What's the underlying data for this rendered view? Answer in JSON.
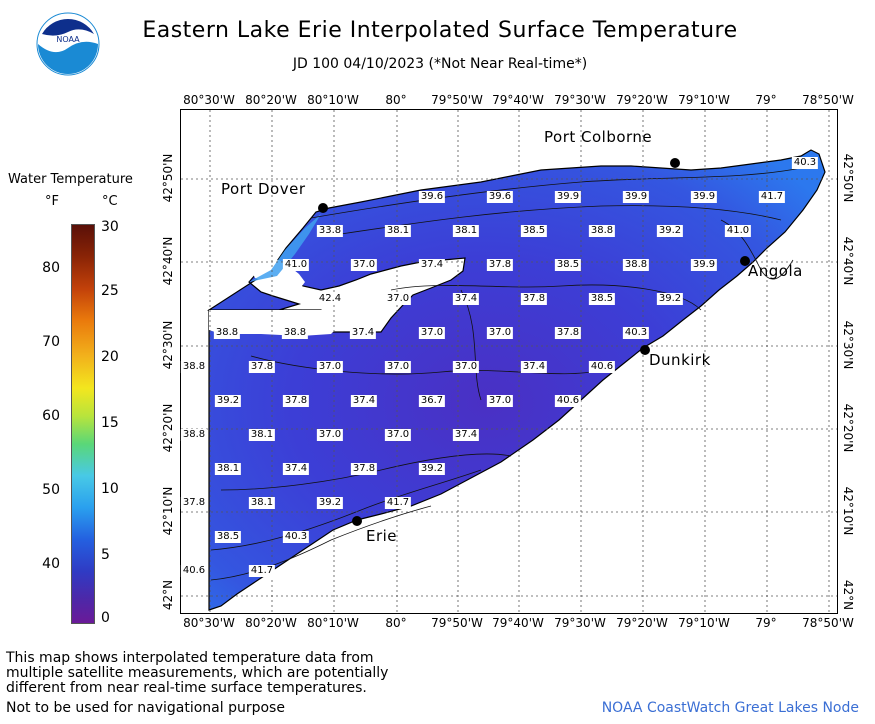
{
  "header": {
    "title": "Eastern Lake Erie Interpolated Surface Temperature",
    "subtitle": "JD 100 04/10/2023 (*Not Near Real-time*)",
    "logo_text": "NOAA"
  },
  "legend": {
    "title": "Water Temperature",
    "unit_f": "°F",
    "unit_c": "°C",
    "ticks_f": [
      "80",
      "70",
      "60",
      "50",
      "40"
    ],
    "ticks_c": [
      "30",
      "25",
      "20",
      "15",
      "10",
      "5",
      "0"
    ]
  },
  "axes": {
    "lon_labels": [
      "80°30'W",
      "80°20'W",
      "80°10'W",
      "80°",
      "79°50'W",
      "79°40'W",
      "79°30'W",
      "79°20'W",
      "79°10'W",
      "79°",
      "78°50'W"
    ],
    "lat_labels": [
      "42°50'N",
      "42°40'N",
      "42°30'N",
      "42°20'N",
      "42°10'N",
      "42°N"
    ]
  },
  "cities": {
    "port_colborne": "Port Colborne",
    "port_dover": "Port Dover",
    "angola": "Angola",
    "dunkirk": "Dunkirk",
    "erie": "Erie"
  },
  "temperatures": {
    "t01": "40.3",
    "t02": "39.6",
    "t03": "39.6",
    "t04": "39.9",
    "t05": "39.9",
    "t06": "39.9",
    "t07": "41.7",
    "t08": "33.8",
    "t09": "38.1",
    "t10": "38.1",
    "t11": "38.5",
    "t12": "38.8",
    "t13": "39.2",
    "t14": "41.0",
    "t15": "41.0",
    "t16": "37.0",
    "t17": "37.4",
    "t18": "37.8",
    "t19": "38.5",
    "t20": "38.8",
    "t21": "39.9",
    "t22": "42.4",
    "t23": "37.0",
    "t24": "37.4",
    "t25": "37.8",
    "t26": "38.5",
    "t27": "39.2",
    "t28": "38.8",
    "t29": "38.8",
    "t30": "37.4",
    "t31": "37.0",
    "t32": "37.0",
    "t33": "37.8",
    "t34": "40.3",
    "t35": "38.8",
    "t36": "37.8",
    "t37": "37.0",
    "t38": "37.0",
    "t39": "37.0",
    "t40": "37.4",
    "t41": "40.6",
    "t42": "39.2",
    "t43": "37.8",
    "t44": "37.4",
    "t45": "36.7",
    "t46": "37.0",
    "t47": "40.6",
    "t48": "38.8",
    "t49": "38.1",
    "t50": "37.0",
    "t51": "37.0",
    "t52": "37.4",
    "t53": "38.1",
    "t54": "37.4",
    "t55": "37.8",
    "t56": "39.2",
    "t57": "37.8",
    "t58": "38.1",
    "t59": "39.2",
    "t60": "41.7",
    "t61": "38.5",
    "t62": "40.3",
    "t63": "40.6",
    "t64": "41.7"
  },
  "notes": {
    "line1": "This map shows interpolated temperature data from",
    "line2": "multiple satellite measurements, which are potentially",
    "line3": "different from near real-time surface temperatures.",
    "disclaimer": "Not to be used for navigational purpose",
    "credit": "NOAA CoastWatch Great Lakes Node"
  },
  "colors": {
    "lake_main": "#3848d8",
    "lake_cool": "#4636c8",
    "lake_warm": "#2e76ee",
    "coast_light": "#3fa0f0",
    "credit": "#3b6fd4"
  }
}
